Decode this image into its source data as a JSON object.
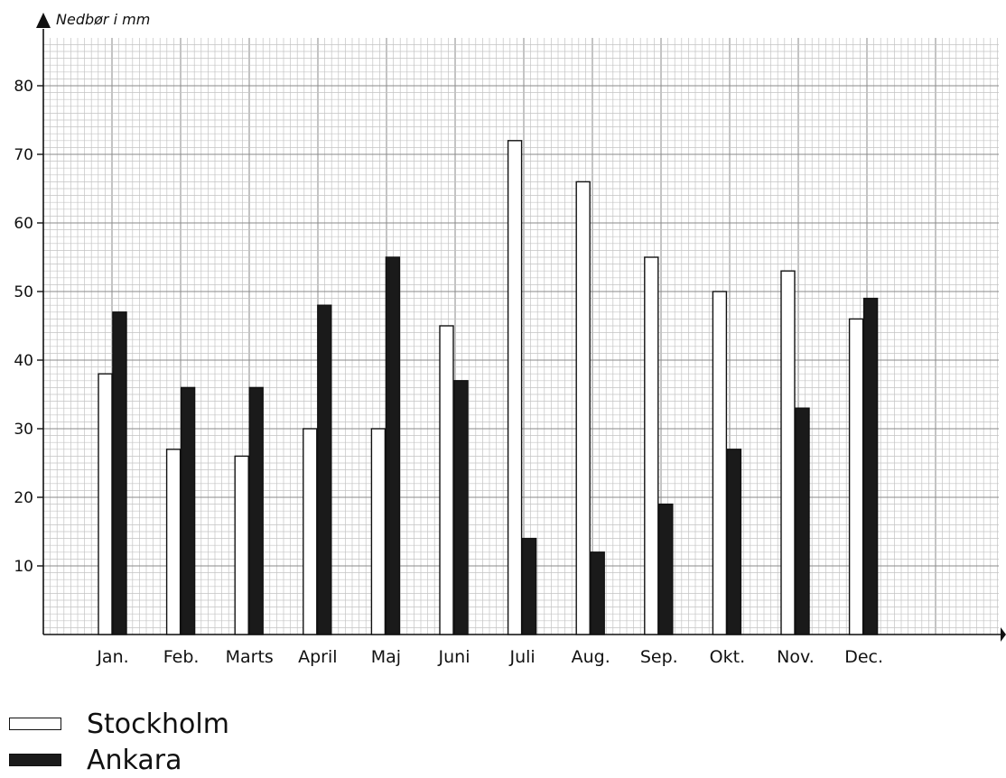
{
  "chart_data": {
    "type": "bar",
    "ylabel": "Nedbør i mm",
    "ylim": [
      0,
      80
    ],
    "yticks": [
      10,
      20,
      30,
      40,
      50,
      60,
      70,
      80
    ],
    "grid": true,
    "categories": [
      "Jan.",
      "Feb.",
      "Marts",
      "April",
      "Maj",
      "Juni",
      "Juli",
      "Aug.",
      "Sep.",
      "Okt.",
      "Nov.",
      "Dec."
    ],
    "series": [
      {
        "name": "Stockholm",
        "color": "#ffffff",
        "values": [
          38,
          27,
          26,
          30,
          30,
          45,
          72,
          66,
          55,
          50,
          53,
          46
        ]
      },
      {
        "name": "Ankara",
        "color": "#1a1a1a",
        "values": [
          47,
          36,
          36,
          48,
          55,
          37,
          14,
          12,
          19,
          27,
          33,
          49
        ]
      }
    ],
    "legend_position": "bottom-left"
  }
}
